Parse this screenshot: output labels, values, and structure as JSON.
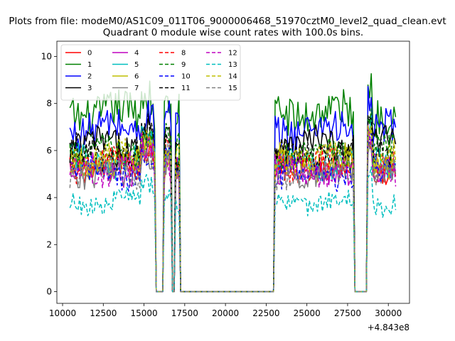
{
  "chart_data": {
    "type": "line",
    "suptitle": "Plots from file: modeM0/AS1C09_011T06_9000006468_51970cztM0_level2_quad_clean.evt",
    "title": "Quadrant 0 module wise count rates with 100.0s bins.",
    "xlabel": "",
    "ylabel": "",
    "xlim": [
      9650,
      31300
    ],
    "ylim": [
      -0.5,
      10.65
    ],
    "xticks": [
      10000,
      12500,
      15000,
      17500,
      20000,
      22500,
      25000,
      27500,
      30000
    ],
    "xtick_labels": [
      "10000",
      "12500",
      "15000",
      "17500",
      "20000",
      "22500",
      "25000",
      "27500",
      "30000"
    ],
    "yticks": [
      0,
      2,
      4,
      6,
      8,
      10
    ],
    "ytick_labels": [
      "0",
      "2",
      "4",
      "6",
      "8",
      "10"
    ],
    "x_offset_label": "+4.843e8",
    "legend_position": "upper-left",
    "series": [
      {
        "name": "0",
        "color": "#ff0000",
        "dash": "solid",
        "level": 5.3
      },
      {
        "name": "1",
        "color": "#008000",
        "dash": "solid",
        "level": 7.6
      },
      {
        "name": "2",
        "color": "#0000ff",
        "dash": "solid",
        "level": 6.9
      },
      {
        "name": "3",
        "color": "#000000",
        "dash": "solid",
        "level": 6.2
      },
      {
        "name": "4",
        "color": "#bf00bf",
        "dash": "solid",
        "level": 5.2
      },
      {
        "name": "5",
        "color": "#00bfbf",
        "dash": "solid",
        "level": 5.5
      },
      {
        "name": "6",
        "color": "#bfbf00",
        "dash": "solid",
        "level": 5.5
      },
      {
        "name": "7",
        "color": "#808080",
        "dash": "solid",
        "level": 5.1
      },
      {
        "name": "8",
        "color": "#ff0000",
        "dash": "dashed",
        "level": 5.4
      },
      {
        "name": "9",
        "color": "#008000",
        "dash": "dashed",
        "level": 5.9
      },
      {
        "name": "10",
        "color": "#0000ff",
        "dash": "dashed",
        "level": 5.0
      },
      {
        "name": "11",
        "color": "#000000",
        "dash": "dashed",
        "level": 5.9
      },
      {
        "name": "12",
        "color": "#bf00bf",
        "dash": "dashed",
        "level": 5.2
      },
      {
        "name": "13",
        "color": "#00bfbf",
        "dash": "dashed",
        "level": 3.8
      },
      {
        "name": "14",
        "color": "#bfbf00",
        "dash": "dashed",
        "level": 5.7
      },
      {
        "name": "15",
        "color": "#808080",
        "dash": "dashed",
        "level": 5.0
      }
    ],
    "x_start": 10450,
    "x_end": 30450,
    "bin": 100,
    "gaps": [
      [
        15650,
        16250
      ],
      [
        16650,
        16950
      ],
      [
        17150,
        23050
      ],
      [
        27850,
        28750
      ]
    ]
  }
}
